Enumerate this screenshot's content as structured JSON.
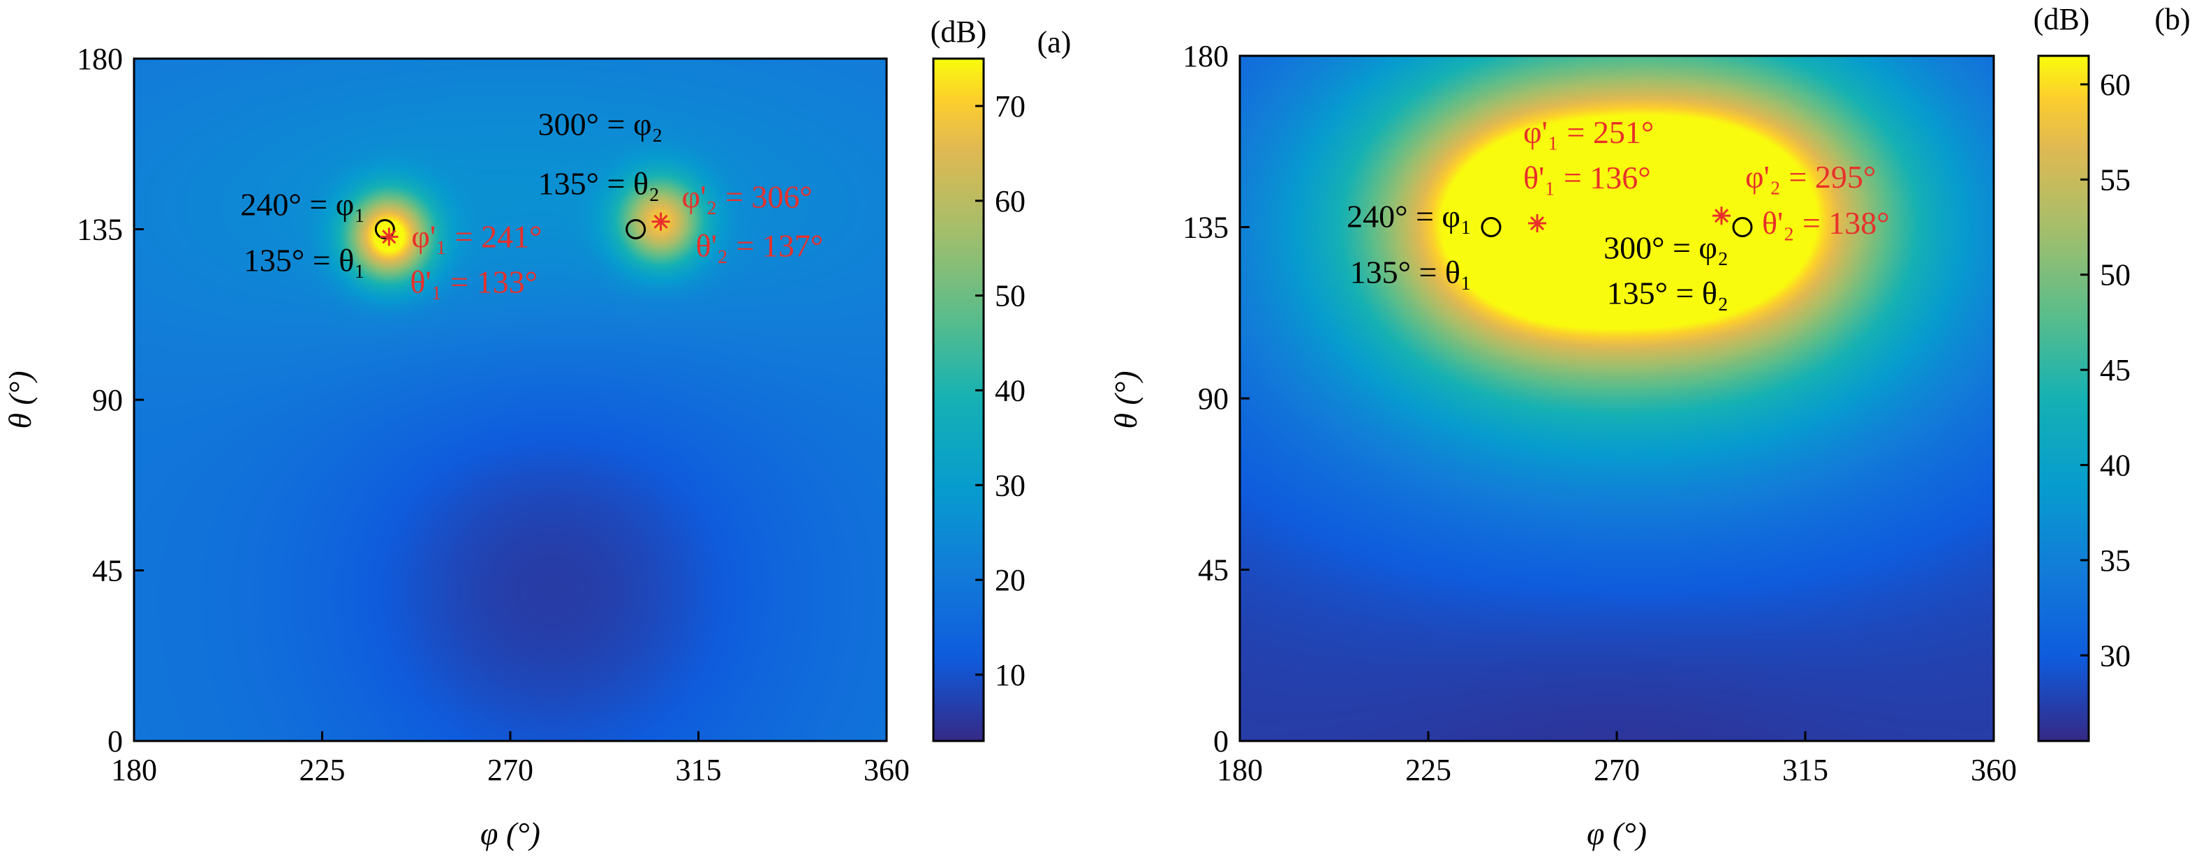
{
  "chart_data": [
    {
      "type": "heatmap",
      "panel_label": "(a)",
      "xlabel": "φ (°)",
      "ylabel": "θ (°)",
      "xlim": [
        180,
        360
      ],
      "ylim": [
        0,
        180
      ],
      "xticks": [
        "180",
        "225",
        "270",
        "315",
        "360"
      ],
      "yticks": [
        "0",
        "45",
        "90",
        "135",
        "180"
      ],
      "colorbar": {
        "unit": "(dB)",
        "range": [
          3,
          75
        ],
        "ticks": [
          "10",
          "20",
          "30",
          "40",
          "50",
          "60",
          "70"
        ]
      },
      "field": {
        "background_db": 19,
        "low_center": [
          280,
          40
        ],
        "low_db": 6,
        "peaks": [
          {
            "phi": 241,
            "theta": 133,
            "db": 75
          },
          {
            "phi": 306,
            "theta": 137,
            "db": 64
          }
        ]
      },
      "true_sources": [
        {
          "phi": 240,
          "theta": 135,
          "phi_label": "240° = φ₁",
          "theta_label": "135° = θ₁"
        },
        {
          "phi": 300,
          "theta": 135,
          "phi_label": "300° = φ₂",
          "theta_label": "135° = θ₂"
        }
      ],
      "estimates": [
        {
          "phi": 241,
          "theta": 133,
          "phi_label": "φ'₁ = 241°",
          "theta_label": "θ'₁ = 133°"
        },
        {
          "phi": 306,
          "theta": 137,
          "phi_label": "φ'₂ = 306°",
          "theta_label": "θ'₂ = 137°"
        }
      ]
    },
    {
      "type": "heatmap",
      "panel_label": "(b)",
      "xlabel": "φ (°)",
      "ylabel": "θ (°)",
      "xlim": [
        180,
        360
      ],
      "ylim": [
        0,
        180
      ],
      "xticks": [
        "180",
        "225",
        "270",
        "315",
        "360"
      ],
      "yticks": [
        "0",
        "45",
        "90",
        "135",
        "180"
      ],
      "colorbar": {
        "unit": "(dB)",
        "range": [
          25.5,
          61.5
        ],
        "ticks": [
          "30",
          "35",
          "40",
          "45",
          "50",
          "55",
          "60"
        ]
      },
      "field": {
        "background_db": 27,
        "low_center": [
          270,
          0
        ],
        "low_db": 26,
        "peaks": [
          {
            "phi": 251,
            "theta": 136,
            "db": 61
          },
          {
            "phi": 295,
            "theta": 138,
            "db": 61
          }
        ]
      },
      "true_sources": [
        {
          "phi": 240,
          "theta": 135,
          "phi_label": "240° = φ₁",
          "theta_label": "135° = θ₁"
        },
        {
          "phi": 300,
          "theta": 135,
          "phi_label": "300° = φ₂",
          "theta_label": "135° = θ₂"
        }
      ],
      "estimates": [
        {
          "phi": 251,
          "theta": 136,
          "phi_label": "φ'₁ = 251°",
          "theta_label": "θ'₁ = 136°"
        },
        {
          "phi": 295,
          "theta": 138,
          "phi_label": "φ'₂ = 295°",
          "theta_label": "θ'₂ = 138°"
        }
      ]
    }
  ],
  "colors": {
    "true_marker": "#000000",
    "estimate": "#e8302a",
    "axis": "#000000"
  }
}
